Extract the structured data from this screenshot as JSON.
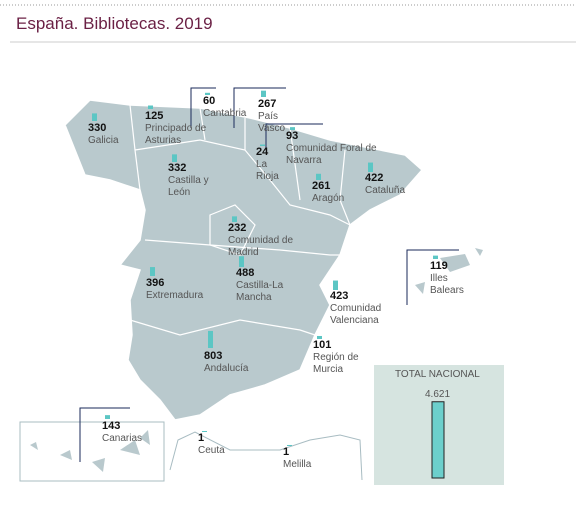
{
  "title": "España. Bibliotecas. 2019",
  "regions": [
    {
      "name": "Galicia",
      "value": 330
    },
    {
      "name": "Principado de Asturias",
      "value": 125
    },
    {
      "name": "Cantabria",
      "value": 60
    },
    {
      "name": "País Vasco",
      "value": 267
    },
    {
      "name": "Comunidad Foral de Navarra",
      "value": 93
    },
    {
      "name": "La Rioja",
      "value": 24
    },
    {
      "name": "Castilla y León",
      "value": 332
    },
    {
      "name": "Aragón",
      "value": 261
    },
    {
      "name": "Cataluña",
      "value": 422
    },
    {
      "name": "Comunidad de Madrid",
      "value": 232
    },
    {
      "name": "Extremadura",
      "value": 396
    },
    {
      "name": "Castilla-La Mancha",
      "value": 488
    },
    {
      "name": "Comunidad Valenciana",
      "value": 423
    },
    {
      "name": "Illes Balears",
      "value": 119
    },
    {
      "name": "Región de Murcia",
      "value": 101
    },
    {
      "name": "Andalucía",
      "value": 803
    },
    {
      "name": "Canarias",
      "value": 143
    },
    {
      "name": "Ceuta",
      "value": 1
    },
    {
      "name": "Melilla",
      "value": 1
    }
  ],
  "total": {
    "label": "TOTAL NACIONAL",
    "value": 4621,
    "value_label": "4.621"
  }
}
